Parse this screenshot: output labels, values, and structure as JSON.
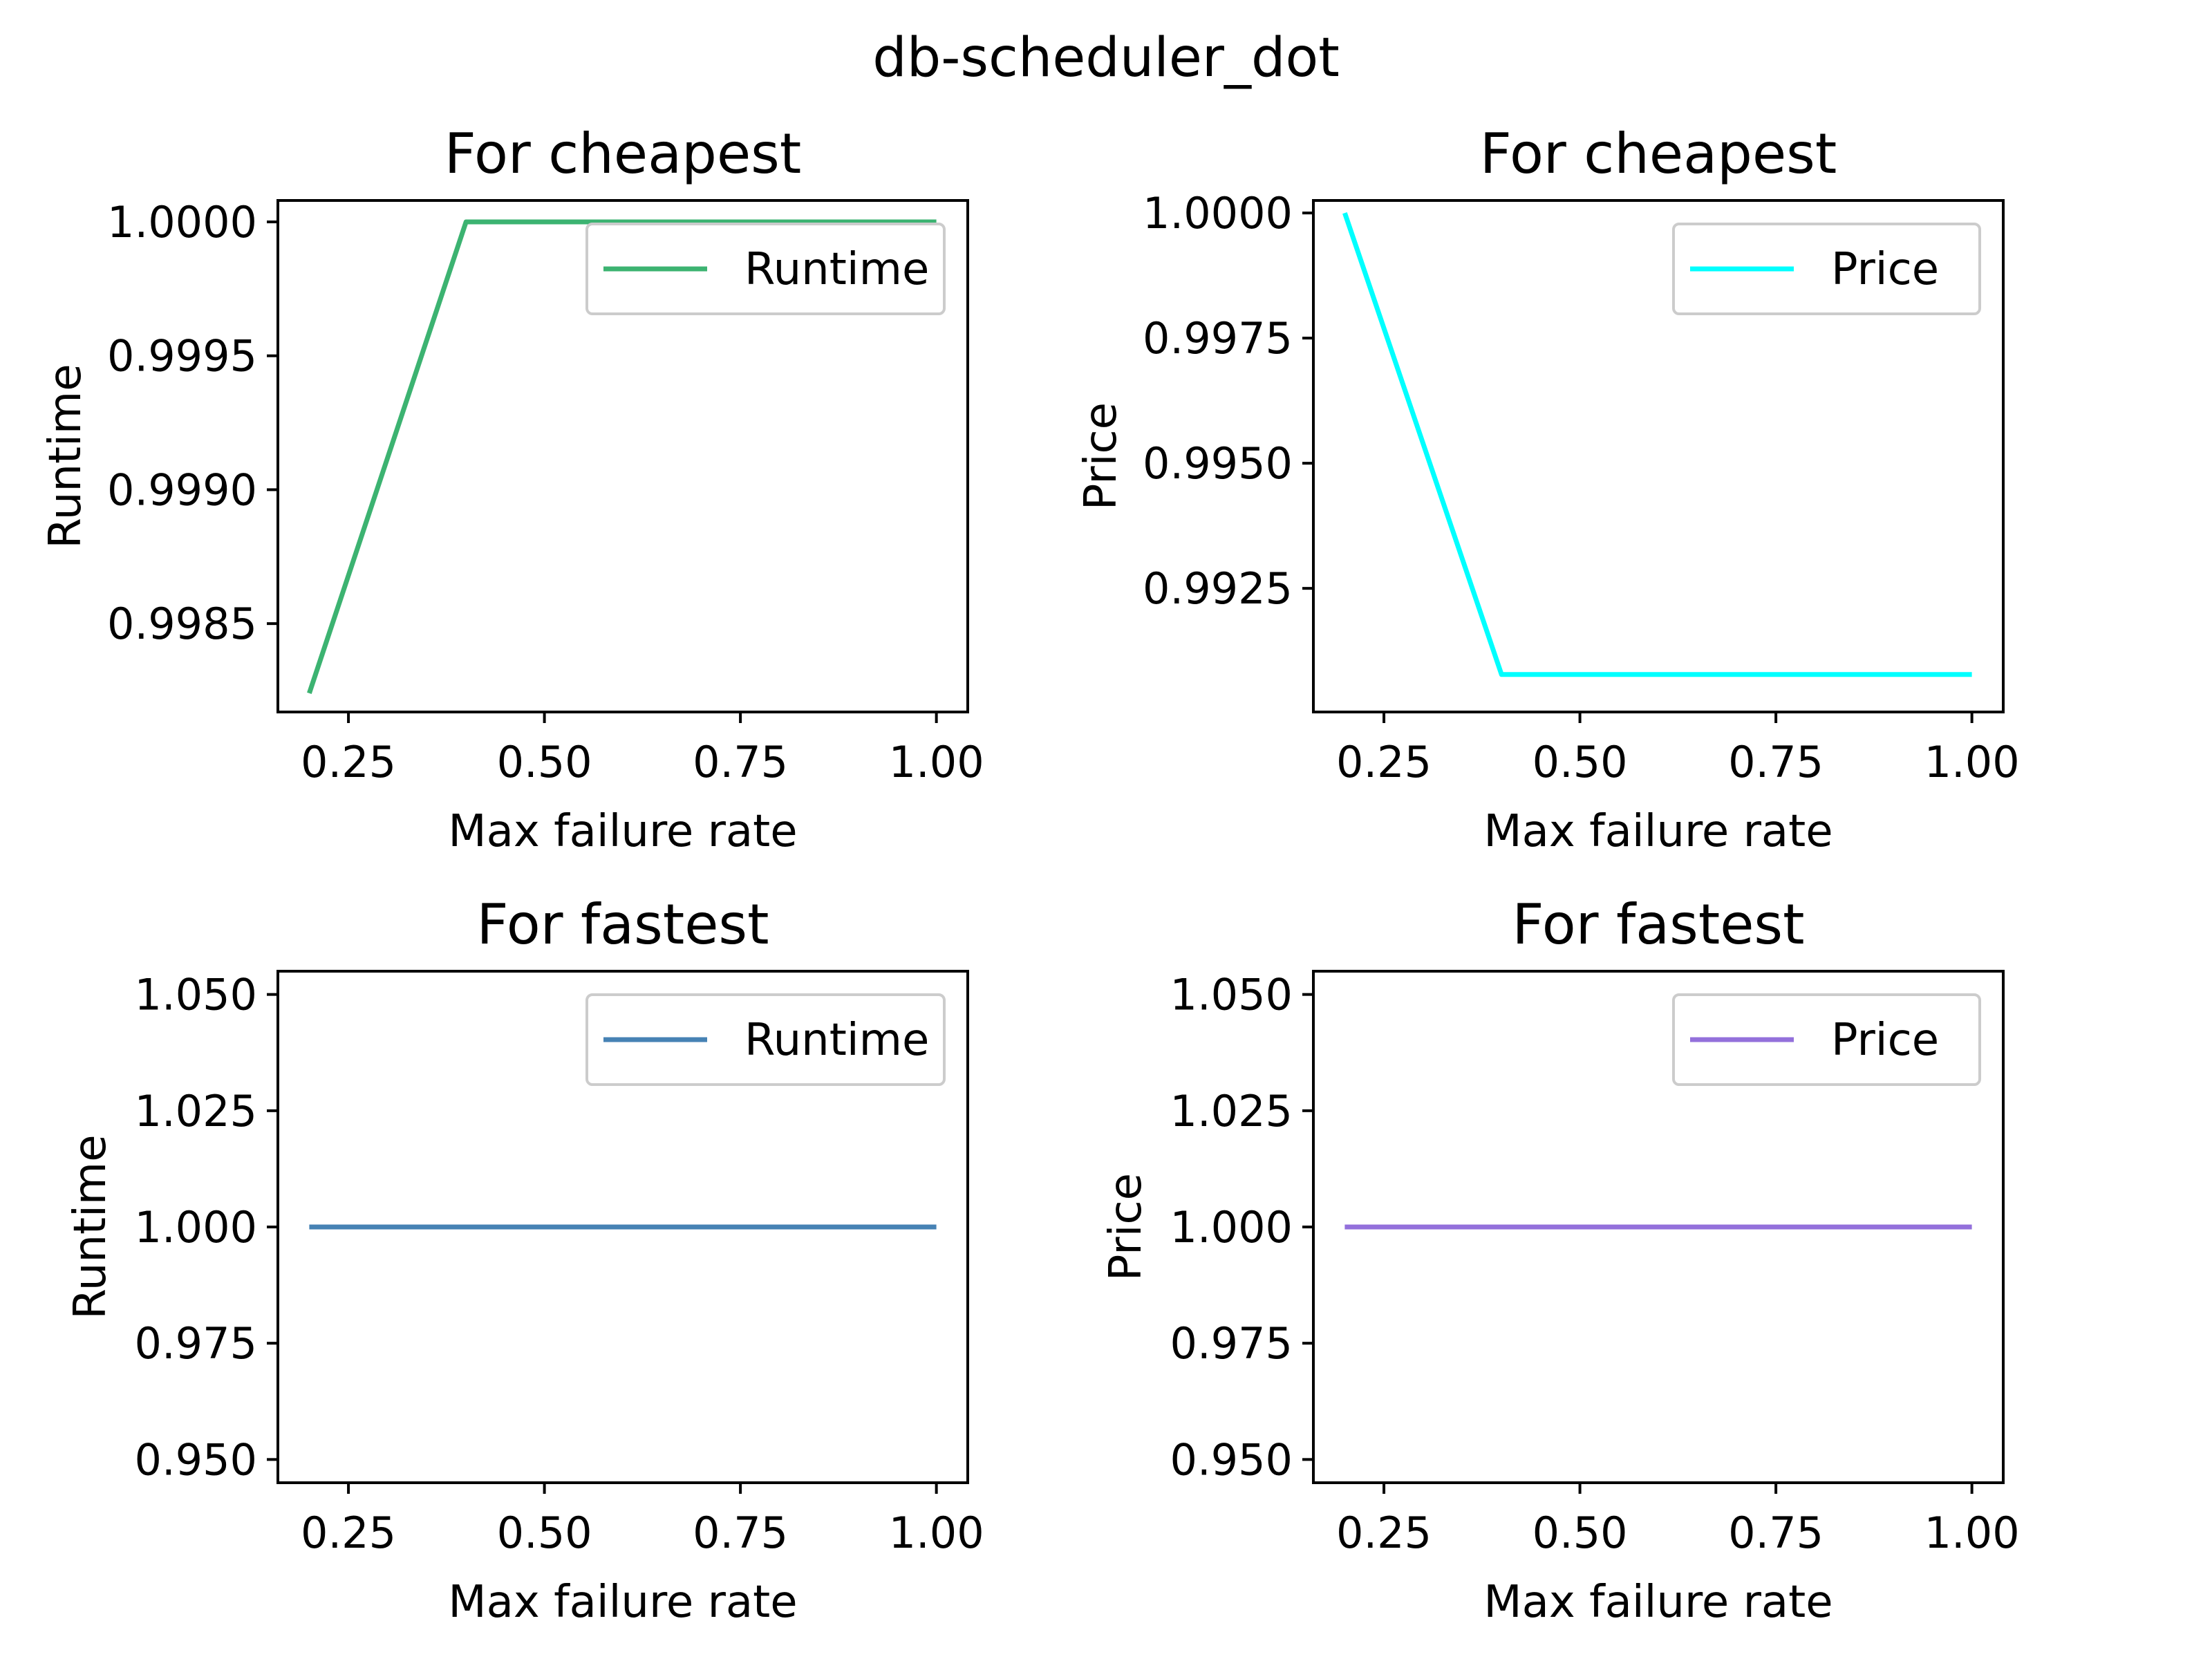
{
  "figure": {
    "title": "db-scheduler_dot"
  },
  "chart_data": [
    {
      "type": "line",
      "title": "For cheapest",
      "xlabel": "Max failure rate",
      "ylabel": "Runtime",
      "xlim": [
        0.16,
        1.04
      ],
      "ylim": [
        0.99817,
        1.00008
      ],
      "xticks": [
        0.25,
        0.5,
        0.75,
        1.0
      ],
      "xtick_labels": [
        "0.25",
        "0.50",
        "0.75",
        "1.00"
      ],
      "yticks": [
        0.9985,
        0.999,
        0.9995,
        1.0
      ],
      "ytick_labels": [
        "0.9985",
        "0.9990",
        "0.9995",
        "1.0000"
      ],
      "legend_position": "upper right",
      "series": [
        {
          "name": "Runtime",
          "color": "#3cb371",
          "x": [
            0.2,
            0.4,
            0.6,
            0.8,
            1.0
          ],
          "y": [
            0.99824,
            1.0,
            1.0,
            1.0,
            1.0
          ]
        }
      ]
    },
    {
      "type": "line",
      "title": "For cheapest",
      "xlabel": "Max failure rate",
      "ylabel": "Price",
      "xlim": [
        0.16,
        1.04
      ],
      "ylim": [
        0.99003,
        1.00025
      ],
      "xticks": [
        0.25,
        0.5,
        0.75,
        1.0
      ],
      "xtick_labels": [
        "0.25",
        "0.50",
        "0.75",
        "1.00"
      ],
      "yticks": [
        0.9925,
        0.995,
        0.9975,
        1.0
      ],
      "ytick_labels": [
        "0.9925",
        "0.9950",
        "0.9975",
        "1.0000"
      ],
      "legend_position": "upper right",
      "series": [
        {
          "name": "Price",
          "color": "#00ffff",
          "x": [
            0.2,
            0.4,
            0.6,
            0.8,
            1.0
          ],
          "y": [
            1.0,
            0.99078,
            0.99078,
            0.99078,
            0.99078
          ]
        }
      ]
    },
    {
      "type": "line",
      "title": "For fastest",
      "xlabel": "Max failure rate",
      "ylabel": "Runtime",
      "xlim": [
        0.16,
        1.04
      ],
      "ylim": [
        0.945,
        1.055
      ],
      "xticks": [
        0.25,
        0.5,
        0.75,
        1.0
      ],
      "xtick_labels": [
        "0.25",
        "0.50",
        "0.75",
        "1.00"
      ],
      "yticks": [
        0.95,
        0.975,
        1.0,
        1.025,
        1.05
      ],
      "ytick_labels": [
        "0.950",
        "0.975",
        "1.000",
        "1.025",
        "1.050"
      ],
      "legend_position": "upper right",
      "series": [
        {
          "name": "Runtime",
          "color": "#4682b4",
          "x": [
            0.2,
            0.4,
            0.6,
            0.8,
            1.0
          ],
          "y": [
            1.0,
            1.0,
            1.0,
            1.0,
            1.0
          ]
        }
      ]
    },
    {
      "type": "line",
      "title": "For fastest",
      "xlabel": "Max failure rate",
      "ylabel": "Price",
      "xlim": [
        0.16,
        1.04
      ],
      "ylim": [
        0.945,
        1.055
      ],
      "xticks": [
        0.25,
        0.5,
        0.75,
        1.0
      ],
      "xtick_labels": [
        "0.25",
        "0.50",
        "0.75",
        "1.00"
      ],
      "yticks": [
        0.95,
        0.975,
        1.0,
        1.025,
        1.05
      ],
      "ytick_labels": [
        "0.950",
        "0.975",
        "1.000",
        "1.025",
        "1.050"
      ],
      "legend_position": "upper right",
      "series": [
        {
          "name": "Price",
          "color": "#9370db",
          "x": [
            0.2,
            0.4,
            0.6,
            0.8,
            1.0
          ],
          "y": [
            1.0,
            1.0,
            1.0,
            1.0,
            1.0
          ]
        }
      ]
    }
  ]
}
